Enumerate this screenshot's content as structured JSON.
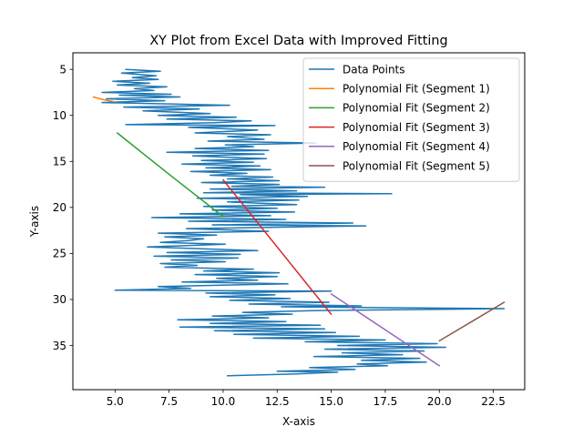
{
  "chart_data": {
    "type": "line",
    "title": "XY Plot from Excel Data with Improved Fitting",
    "xlabel": "X-axis",
    "ylabel": "Y-axis",
    "xlim": [
      3.05,
      23.95
    ],
    "ylim": [
      39.8,
      3.2
    ],
    "y_inverted": true,
    "grid": false,
    "legend_position": "upper-right",
    "x_ticks": [
      5.0,
      7.5,
      10.0,
      12.5,
      15.0,
      17.5,
      20.0,
      22.5
    ],
    "x_tick_labels": [
      "5.0",
      "7.5",
      "10.0",
      "12.5",
      "15.0",
      "17.5",
      "20.0",
      "22.5"
    ],
    "y_ticks": [
      5,
      10,
      15,
      20,
      25,
      30,
      35
    ],
    "y_tick_labels": [
      "5",
      "10",
      "15",
      "20",
      "25",
      "30",
      "35"
    ],
    "series": [
      {
        "name": "Data Points",
        "color": "#1f77b4",
        "points": [
          [
            5.5,
            5.0
          ],
          [
            7.1,
            5.2
          ],
          [
            5.3,
            5.4
          ],
          [
            6.9,
            5.7
          ],
          [
            5.8,
            5.9
          ],
          [
            7.0,
            6.1
          ],
          [
            4.9,
            6.3
          ],
          [
            6.6,
            6.5
          ],
          [
            5.1,
            6.7
          ],
          [
            7.4,
            6.9
          ],
          [
            5.9,
            7.1
          ],
          [
            6.8,
            7.3
          ],
          [
            4.4,
            7.5
          ],
          [
            7.6,
            7.7
          ],
          [
            5.2,
            7.8
          ],
          [
            8.0,
            8.0
          ],
          [
            4.6,
            8.2
          ],
          [
            7.3,
            8.4
          ],
          [
            4.4,
            8.6
          ],
          [
            10.3,
            8.9
          ],
          [
            5.4,
            9.1
          ],
          [
            8.9,
            9.3
          ],
          [
            6.3,
            9.5
          ],
          [
            9.4,
            9.8
          ],
          [
            7.0,
            10.0
          ],
          [
            10.6,
            10.2
          ],
          [
            7.4,
            10.4
          ],
          [
            11.3,
            10.6
          ],
          [
            9.6,
            10.8
          ],
          [
            5.5,
            11.0
          ],
          [
            12.4,
            11.1
          ],
          [
            8.4,
            11.3
          ],
          [
            11.6,
            11.6
          ],
          [
            8.7,
            11.9
          ],
          [
            12.2,
            12.1
          ],
          [
            10.2,
            12.3
          ],
          [
            11.9,
            12.6
          ],
          [
            9.3,
            12.8
          ],
          [
            14.3,
            13.0
          ],
          [
            10.1,
            13.2
          ],
          [
            11.4,
            13.4
          ],
          [
            8.7,
            13.6
          ],
          [
            12.1,
            13.8
          ],
          [
            7.4,
            14.0
          ],
          [
            11.9,
            14.2
          ],
          [
            8.6,
            14.4
          ],
          [
            12.0,
            14.7
          ],
          [
            9.0,
            14.9
          ],
          [
            11.4,
            15.1
          ],
          [
            8.1,
            15.3
          ],
          [
            11.7,
            15.5
          ],
          [
            9.2,
            15.7
          ],
          [
            12.2,
            15.9
          ],
          [
            8.5,
            16.1
          ],
          [
            11.1,
            16.3
          ],
          [
            9.4,
            16.5
          ],
          [
            12.3,
            16.7
          ],
          [
            10.2,
            16.9
          ],
          [
            12.6,
            17.1
          ],
          [
            9.0,
            17.3
          ],
          [
            12.6,
            17.5
          ],
          [
            10.4,
            17.7
          ],
          [
            14.7,
            17.8
          ],
          [
            9.4,
            18.0
          ],
          [
            13.4,
            18.2
          ],
          [
            9.1,
            18.4
          ],
          [
            17.8,
            18.5
          ],
          [
            10.8,
            18.6
          ],
          [
            13.9,
            18.8
          ],
          [
            8.8,
            19.0
          ],
          [
            13.5,
            19.2
          ],
          [
            10.2,
            19.4
          ],
          [
            13.4,
            19.7
          ],
          [
            9.1,
            19.9
          ],
          [
            12.5,
            20.1
          ],
          [
            9.5,
            20.3
          ],
          [
            13.3,
            20.5
          ],
          [
            8.0,
            20.7
          ],
          [
            12.2,
            20.9
          ],
          [
            6.7,
            21.1
          ],
          [
            12.9,
            21.3
          ],
          [
            8.4,
            21.5
          ],
          [
            16.0,
            21.7
          ],
          [
            9.5,
            21.9
          ],
          [
            16.6,
            22.0
          ],
          [
            8.3,
            22.3
          ],
          [
            12.1,
            22.6
          ],
          [
            7.0,
            22.8
          ],
          [
            9.7,
            23.0
          ],
          [
            7.3,
            23.2
          ],
          [
            9.1,
            23.4
          ],
          [
            8.4,
            23.6
          ],
          [
            7.1,
            23.8
          ],
          [
            10.1,
            24.0
          ],
          [
            6.5,
            24.3
          ],
          [
            9.0,
            24.5
          ],
          [
            11.6,
            24.7
          ],
          [
            7.4,
            24.9
          ],
          [
            10.8,
            25.1
          ],
          [
            6.8,
            25.3
          ],
          [
            10.7,
            25.5
          ],
          [
            7.6,
            25.7
          ],
          [
            10.1,
            25.9
          ],
          [
            7.1,
            26.1
          ],
          [
            8.8,
            26.3
          ],
          [
            7.3,
            26.5
          ],
          [
            11.4,
            26.7
          ],
          [
            9.1,
            26.9
          ],
          [
            12.6,
            27.1
          ],
          [
            8.7,
            27.3
          ],
          [
            12.5,
            27.5
          ],
          [
            9.7,
            27.7
          ],
          [
            11.6,
            27.9
          ],
          [
            8.1,
            28.1
          ],
          [
            13.0,
            28.3
          ],
          [
            7.0,
            28.6
          ],
          [
            8.5,
            28.8
          ],
          [
            5.0,
            29.0
          ],
          [
            15.0,
            29.1
          ],
          [
            9.2,
            29.3
          ],
          [
            12.4,
            29.5
          ],
          [
            9.4,
            29.7
          ],
          [
            13.1,
            29.9
          ],
          [
            10.3,
            30.1
          ],
          [
            14.9,
            30.3
          ],
          [
            11.2,
            30.5
          ],
          [
            16.4,
            30.7
          ],
          [
            12.7,
            30.8
          ],
          [
            23.0,
            31.0
          ],
          [
            14.3,
            31.2
          ],
          [
            10.9,
            31.4
          ],
          [
            13.2,
            31.6
          ],
          [
            9.5,
            31.8
          ],
          [
            12.1,
            32.0
          ],
          [
            7.9,
            32.2
          ],
          [
            12.9,
            32.4
          ],
          [
            9.4,
            32.6
          ],
          [
            14.5,
            32.8
          ],
          [
            8.0,
            33.0
          ],
          [
            14.7,
            33.2
          ],
          [
            9.6,
            33.4
          ],
          [
            15.2,
            33.6
          ],
          [
            10.5,
            33.8
          ],
          [
            16.3,
            34.0
          ],
          [
            11.4,
            34.2
          ],
          [
            17.5,
            34.4
          ],
          [
            13.8,
            34.6
          ],
          [
            19.9,
            34.8
          ],
          [
            15.3,
            35.0
          ],
          [
            20.3,
            35.2
          ],
          [
            14.7,
            35.4
          ],
          [
            19.3,
            35.6
          ],
          [
            15.5,
            35.8
          ],
          [
            18.3,
            36.0
          ],
          [
            14.2,
            36.2
          ],
          [
            19.1,
            36.4
          ],
          [
            16.4,
            36.6
          ],
          [
            19.4,
            36.8
          ],
          [
            16.2,
            37.0
          ],
          [
            17.6,
            37.2
          ],
          [
            14.0,
            37.4
          ],
          [
            16.1,
            37.6
          ],
          [
            12.5,
            37.8
          ],
          [
            15.3,
            37.9
          ],
          [
            13.4,
            38.1
          ],
          [
            10.2,
            38.3
          ]
        ]
      },
      {
        "name": "Polynomial Fit (Segment 1)",
        "color": "#ff7f0e",
        "points": [
          [
            4.0,
            8.0
          ],
          [
            4.3,
            8.2
          ],
          [
            4.6,
            8.35
          ],
          [
            4.95,
            8.5
          ]
        ]
      },
      {
        "name": "Polynomial Fit (Segment 2)",
        "color": "#2ca02c",
        "points": [
          [
            5.1,
            11.9
          ],
          [
            7.5,
            16.4
          ],
          [
            10.0,
            21.0
          ]
        ]
      },
      {
        "name": "Polynomial Fit (Segment 3)",
        "color": "#d62728",
        "points": [
          [
            10.0,
            17.0
          ],
          [
            12.5,
            24.3
          ],
          [
            15.0,
            31.6
          ]
        ]
      },
      {
        "name": "Polynomial Fit (Segment 4)",
        "color": "#9467bd",
        "points": [
          [
            15.0,
            29.4
          ],
          [
            17.5,
            33.3
          ],
          [
            20.0,
            37.2
          ]
        ]
      },
      {
        "name": "Polynomial Fit (Segment 5)",
        "color": "#8c564b",
        "points": [
          [
            20.0,
            34.5
          ],
          [
            21.5,
            32.4
          ],
          [
            23.0,
            30.3
          ]
        ]
      }
    ]
  }
}
